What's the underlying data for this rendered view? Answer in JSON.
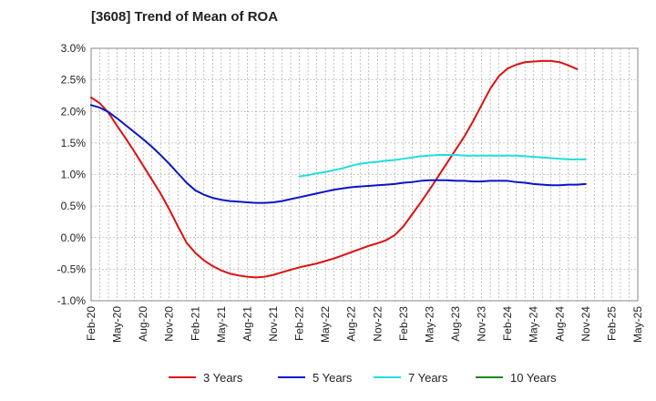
{
  "chart_data": {
    "type": "line",
    "title": "[3608]  Trend of Mean of ROA",
    "xlabel": "",
    "ylabel": "",
    "ylim": [
      -1.0,
      3.0
    ],
    "y_ticks": [
      "3.0%",
      "2.5%",
      "2.0%",
      "1.5%",
      "1.0%",
      "0.5%",
      "0.0%",
      "-0.5%",
      "-1.0%"
    ],
    "y_tick_values": [
      3.0,
      2.5,
      2.0,
      1.5,
      1.0,
      0.5,
      0.0,
      -0.5,
      -1.0
    ],
    "x_ticks": [
      "Feb-20",
      "May-20",
      "Aug-20",
      "Nov-20",
      "Feb-21",
      "May-21",
      "Aug-21",
      "Nov-21",
      "Feb-22",
      "May-22",
      "Aug-22",
      "Nov-22",
      "Feb-23",
      "May-23",
      "Aug-23",
      "Nov-23",
      "Feb-24",
      "May-24",
      "Aug-24",
      "Nov-24",
      "Feb-25",
      "May-25"
    ],
    "x_range_months": [
      0,
      63
    ],
    "grid": true,
    "legend_position": "bottom",
    "series": [
      {
        "name": "3 Years",
        "color": "#dd1111",
        "points": [
          [
            0,
            2.22
          ],
          [
            1,
            2.13
          ],
          [
            2,
            1.98
          ],
          [
            3,
            1.77
          ],
          [
            4,
            1.57
          ],
          [
            5,
            1.36
          ],
          [
            6,
            1.14
          ],
          [
            7,
            0.92
          ],
          [
            8,
            0.7
          ],
          [
            9,
            0.45
          ],
          [
            10,
            0.18
          ],
          [
            11,
            -0.08
          ],
          [
            12,
            -0.24
          ],
          [
            13,
            -0.36
          ],
          [
            14,
            -0.45
          ],
          [
            15,
            -0.52
          ],
          [
            16,
            -0.57
          ],
          [
            17,
            -0.6
          ],
          [
            18,
            -0.62
          ],
          [
            19,
            -0.63
          ],
          [
            20,
            -0.62
          ],
          [
            21,
            -0.59
          ],
          [
            22,
            -0.55
          ],
          [
            23,
            -0.51
          ],
          [
            24,
            -0.47
          ],
          [
            25,
            -0.44
          ],
          [
            26,
            -0.41
          ],
          [
            27,
            -0.37
          ],
          [
            28,
            -0.33
          ],
          [
            29,
            -0.28
          ],
          [
            30,
            -0.23
          ],
          [
            31,
            -0.18
          ],
          [
            32,
            -0.13
          ],
          [
            33,
            -0.09
          ],
          [
            34,
            -0.04
          ],
          [
            35,
            0.04
          ],
          [
            36,
            0.18
          ],
          [
            37,
            0.37
          ],
          [
            38,
            0.56
          ],
          [
            39,
            0.76
          ],
          [
            40,
            0.97
          ],
          [
            41,
            1.18
          ],
          [
            42,
            1.39
          ],
          [
            43,
            1.6
          ],
          [
            44,
            1.84
          ],
          [
            45,
            2.1
          ],
          [
            46,
            2.36
          ],
          [
            47,
            2.56
          ],
          [
            48,
            2.68
          ],
          [
            49,
            2.74
          ],
          [
            50,
            2.78
          ],
          [
            51,
            2.79
          ],
          [
            52,
            2.8
          ],
          [
            53,
            2.8
          ],
          [
            54,
            2.78
          ],
          [
            55,
            2.73
          ],
          [
            56,
            2.67
          ]
        ]
      },
      {
        "name": "5 Years",
        "color": "#0a14c8",
        "points": [
          [
            0,
            2.1
          ],
          [
            1,
            2.06
          ],
          [
            2,
            1.99
          ],
          [
            3,
            1.89
          ],
          [
            4,
            1.78
          ],
          [
            5,
            1.67
          ],
          [
            6,
            1.56
          ],
          [
            7,
            1.44
          ],
          [
            8,
            1.31
          ],
          [
            9,
            1.17
          ],
          [
            10,
            1.02
          ],
          [
            11,
            0.87
          ],
          [
            12,
            0.75
          ],
          [
            13,
            0.68
          ],
          [
            14,
            0.63
          ],
          [
            15,
            0.6
          ],
          [
            16,
            0.58
          ],
          [
            17,
            0.57
          ],
          [
            18,
            0.56
          ],
          [
            19,
            0.55
          ],
          [
            20,
            0.55
          ],
          [
            21,
            0.56
          ],
          [
            22,
            0.58
          ],
          [
            23,
            0.61
          ],
          [
            24,
            0.64
          ],
          [
            25,
            0.67
          ],
          [
            26,
            0.7
          ],
          [
            27,
            0.73
          ],
          [
            28,
            0.76
          ],
          [
            29,
            0.78
          ],
          [
            30,
            0.8
          ],
          [
            31,
            0.81
          ],
          [
            32,
            0.82
          ],
          [
            33,
            0.83
          ],
          [
            34,
            0.84
          ],
          [
            35,
            0.85
          ],
          [
            36,
            0.87
          ],
          [
            37,
            0.88
          ],
          [
            38,
            0.9
          ],
          [
            39,
            0.91
          ],
          [
            40,
            0.91
          ],
          [
            41,
            0.91
          ],
          [
            42,
            0.9
          ],
          [
            43,
            0.9
          ],
          [
            44,
            0.89
          ],
          [
            45,
            0.89
          ],
          [
            46,
            0.9
          ],
          [
            47,
            0.9
          ],
          [
            48,
            0.9
          ],
          [
            49,
            0.88
          ],
          [
            50,
            0.87
          ],
          [
            51,
            0.85
          ],
          [
            52,
            0.84
          ],
          [
            53,
            0.83
          ],
          [
            54,
            0.83
          ],
          [
            55,
            0.84
          ],
          [
            56,
            0.84
          ],
          [
            57,
            0.85
          ]
        ]
      },
      {
        "name": "7 Years",
        "color": "#22dddd",
        "points": [
          [
            24,
            0.97
          ],
          [
            25,
            0.99
          ],
          [
            26,
            1.02
          ],
          [
            27,
            1.04
          ],
          [
            28,
            1.07
          ],
          [
            29,
            1.1
          ],
          [
            30,
            1.14
          ],
          [
            31,
            1.17
          ],
          [
            32,
            1.19
          ],
          [
            33,
            1.2
          ],
          [
            34,
            1.22
          ],
          [
            35,
            1.23
          ],
          [
            36,
            1.25
          ],
          [
            37,
            1.27
          ],
          [
            38,
            1.29
          ],
          [
            39,
            1.3
          ],
          [
            40,
            1.31
          ],
          [
            41,
            1.31
          ],
          [
            42,
            1.31
          ],
          [
            43,
            1.3
          ],
          [
            44,
            1.3
          ],
          [
            45,
            1.3
          ],
          [
            46,
            1.3
          ],
          [
            47,
            1.3
          ],
          [
            48,
            1.3
          ],
          [
            49,
            1.3
          ],
          [
            50,
            1.29
          ],
          [
            51,
            1.28
          ],
          [
            52,
            1.27
          ],
          [
            53,
            1.26
          ],
          [
            54,
            1.25
          ],
          [
            55,
            1.24
          ],
          [
            56,
            1.24
          ],
          [
            57,
            1.24
          ]
        ]
      },
      {
        "name": "10 Years",
        "color": "#1a8a1a",
        "points": []
      }
    ]
  }
}
